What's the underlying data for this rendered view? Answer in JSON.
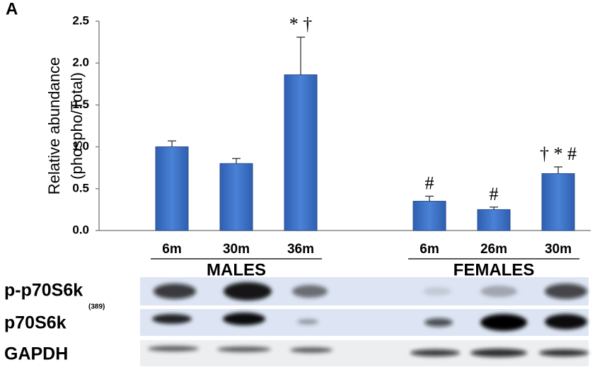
{
  "chart_data": {
    "type": "bar",
    "panel": "A",
    "y_label": [
      "Relative abundance",
      "(phospho/Total)"
    ],
    "color": "#3d72c8",
    "ylim": [
      0,
      2.5
    ],
    "yticks": [
      {
        "value": 0,
        "label": "0.0"
      },
      0.5,
      {
        "value": 1,
        "label": "1.0"
      },
      1.5,
      {
        "value": 2,
        "label": "2.0"
      },
      2.5
    ],
    "groups": [
      {
        "name": "MALES",
        "categories": [
          "6m",
          "30m",
          "36m"
        ],
        "values": [
          1.0,
          0.8,
          1.86
        ],
        "errors": [
          0.07,
          0.06,
          0.45
        ],
        "annotations": [
          null,
          null,
          "* †"
        ]
      },
      {
        "name": "FEMALES",
        "categories": [
          "6m",
          "26m",
          "30m"
        ],
        "values": [
          0.35,
          0.25,
          0.68
        ],
        "errors": [
          0.06,
          0.03,
          0.08
        ],
        "annotations": [
          "#",
          "#",
          "† * #"
        ]
      }
    ],
    "blots": [
      {
        "label": "p-p70S6k",
        "sublabel": "(389)"
      },
      {
        "label": "p70S6k"
      },
      {
        "label": "GAPDH"
      }
    ]
  }
}
